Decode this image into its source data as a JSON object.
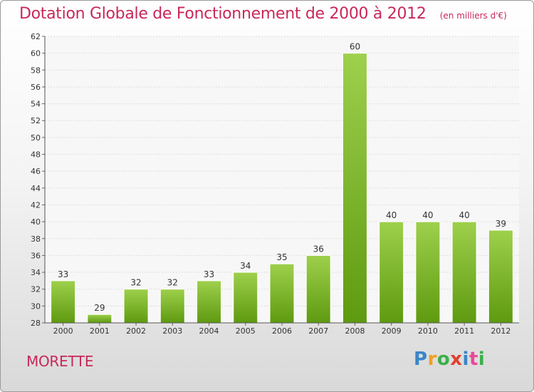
{
  "header": {
    "title": "Dotation Globale de Fonctionnement de 2000 à 2012",
    "subtitle": "(en milliers d'€)"
  },
  "footer": {
    "town": "MORETTE",
    "logo_text": "Proxiti",
    "logo_colors": [
      "#3a86c8",
      "#f0a020",
      "#3ab04a",
      "#e04030",
      "#3a86c8",
      "#e84898",
      "#3ab04a"
    ]
  },
  "chart_data": {
    "type": "bar",
    "title": "Dotation Globale de Fonctionnement de 2000 à 2012",
    "subtitle": "(en milliers d'€)",
    "categories": [
      "2000",
      "2001",
      "2002",
      "2003",
      "2004",
      "2005",
      "2006",
      "2007",
      "2008",
      "2009",
      "2010",
      "2011",
      "2012"
    ],
    "values": [
      33,
      29,
      32,
      32,
      33,
      34,
      35,
      36,
      60,
      40,
      40,
      40,
      39
    ],
    "data_labels": [
      "33",
      "29",
      "32",
      "32",
      "33",
      "34",
      "35",
      "36",
      "60",
      "40",
      "40",
      "40",
      "39"
    ],
    "ylim": [
      28,
      62
    ],
    "yticks": [
      28,
      30,
      32,
      34,
      36,
      38,
      40,
      42,
      44,
      46,
      48,
      50,
      52,
      54,
      56,
      58,
      60,
      62
    ],
    "grid": true,
    "bar_color_top": "#9ed04c",
    "bar_color_bottom": "#5e9a10",
    "xlabel": "",
    "ylabel": ""
  }
}
